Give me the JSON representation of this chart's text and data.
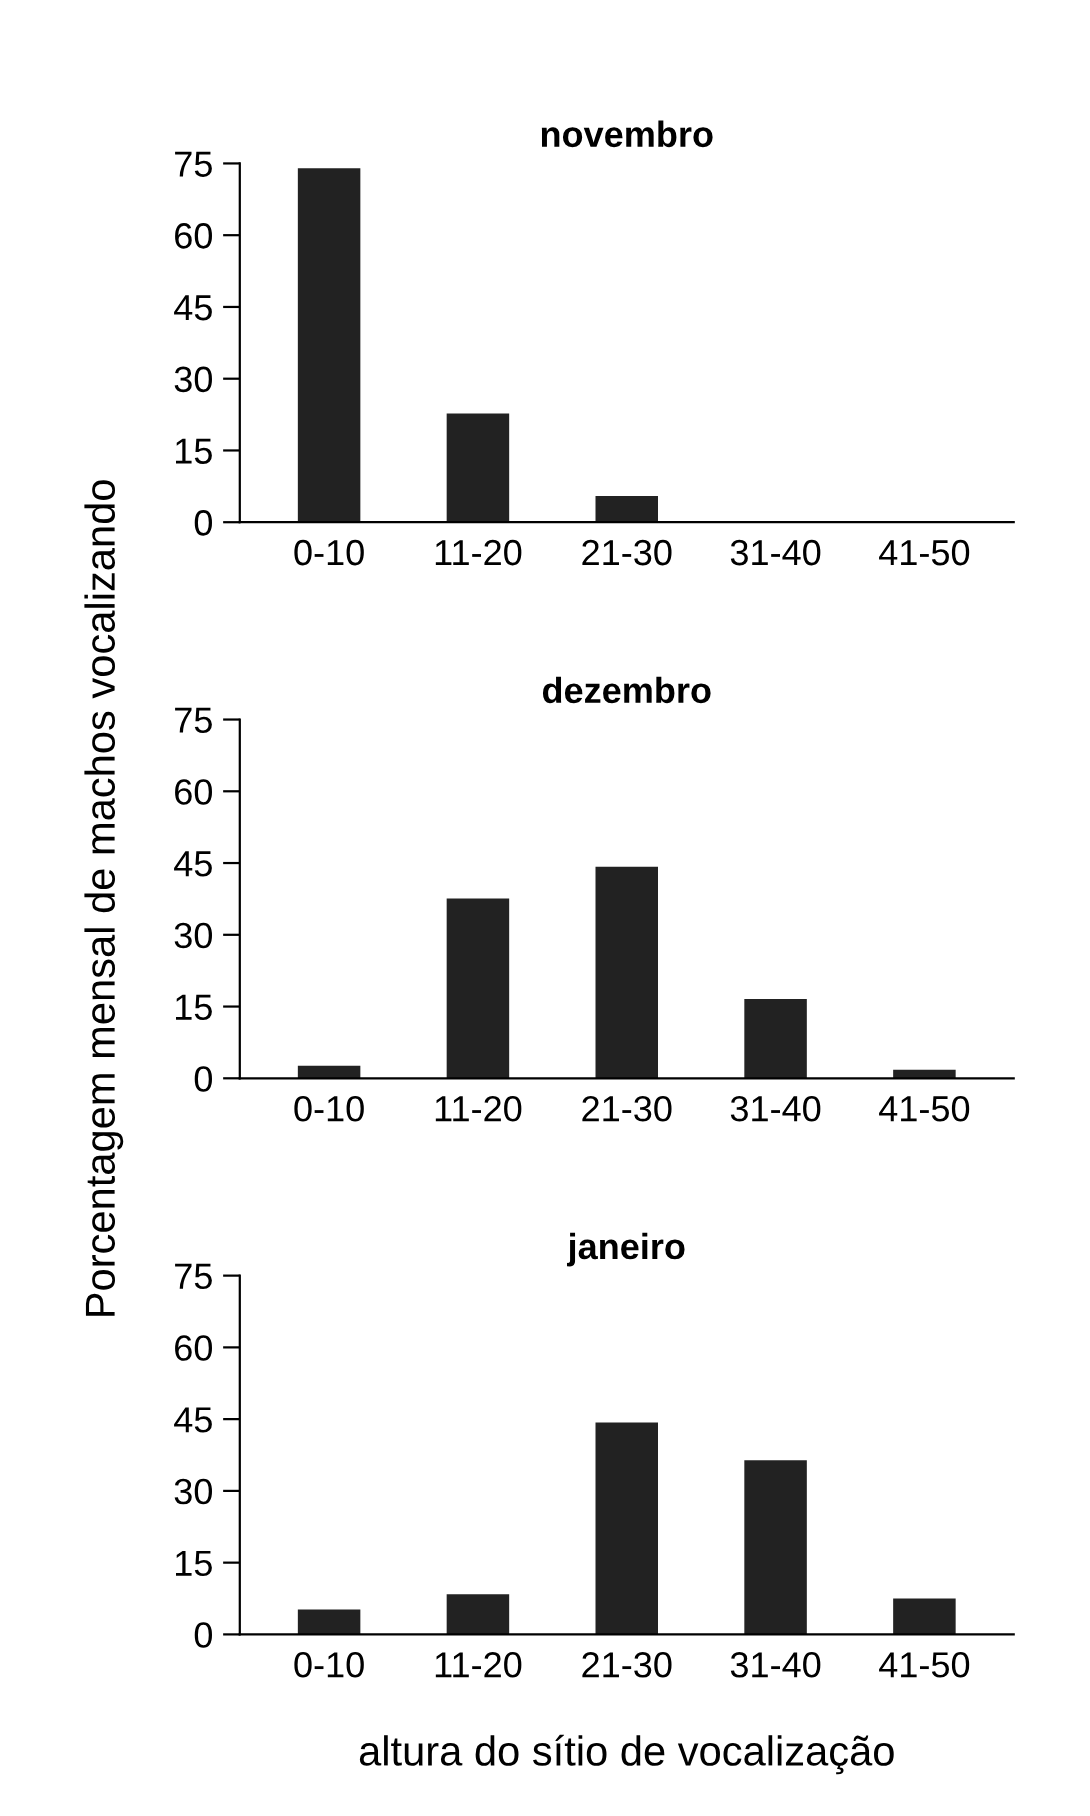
{
  "chart_data": [
    {
      "type": "bar",
      "title": "novembro",
      "categories": [
        "0-10",
        "11-20",
        "21-30",
        "31-40",
        "41-50"
      ],
      "values": [
        74,
        22.7,
        5.5,
        0,
        0
      ],
      "color": "#222222",
      "ylim": [
        0,
        75
      ],
      "yticks": [
        0,
        15,
        30,
        45,
        60,
        75
      ],
      "grid": false
    },
    {
      "type": "bar",
      "title": "dezembro",
      "ylabel": "Porcentagem mensal de machos vocalizando",
      "categories": [
        "0-10",
        "11-20",
        "21-30",
        "31-40",
        "41-50"
      ],
      "values": [
        2.6,
        37.6,
        44.2,
        16.6,
        1.8
      ],
      "color": "#222222",
      "ylim": [
        0,
        75
      ],
      "yticks": [
        0,
        15,
        30,
        45,
        60,
        75
      ],
      "grid": false
    },
    {
      "type": "bar",
      "title": "janeiro",
      "xlabel": "altura do sítio de vocalização",
      "categories": [
        "0-10",
        "11-20",
        "21-30",
        "31-40",
        "41-50"
      ],
      "values": [
        5.2,
        8.4,
        44.3,
        36.4,
        7.5
      ],
      "color": "#222222",
      "ylim": [
        0,
        75
      ],
      "yticks": [
        0,
        15,
        30,
        45,
        60,
        75
      ],
      "grid": false
    }
  ]
}
